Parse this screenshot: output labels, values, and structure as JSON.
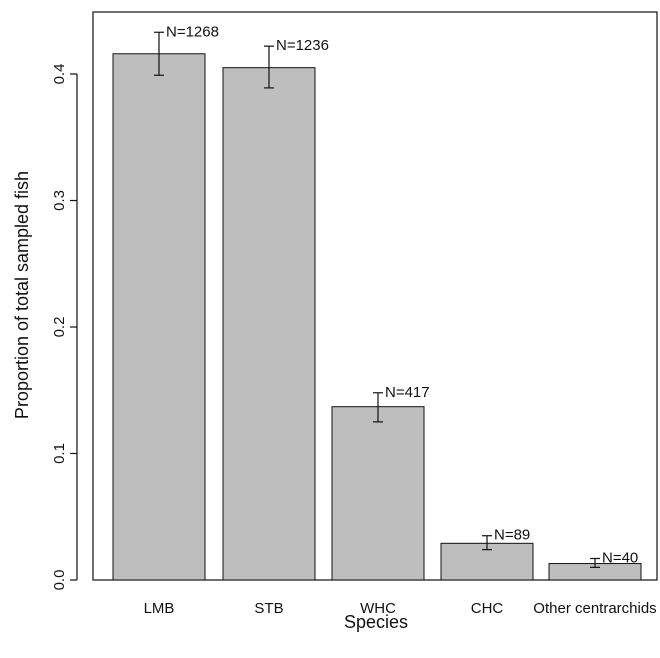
{
  "chart_data": {
    "type": "bar",
    "title": "",
    "xlabel": "Species",
    "ylabel": "Proportion of total sampled fish",
    "categories": [
      "LMB",
      "STB",
      "WHC",
      "CHC",
      "Other centrarchids"
    ],
    "values": [
      0.416,
      0.405,
      0.137,
      0.029,
      0.013
    ],
    "error_low": [
      0.399,
      0.389,
      0.125,
      0.024,
      0.01
    ],
    "error_high": [
      0.433,
      0.422,
      0.148,
      0.035,
      0.017
    ],
    "annotations": [
      "N=1268",
      "N=1236",
      "N=417",
      "N=89",
      "N=40"
    ],
    "ylim": [
      0,
      0.45
    ],
    "yticks": [
      0.0,
      0.1,
      0.2,
      0.3,
      0.4
    ],
    "ytick_labels": [
      "0.0",
      "0.1",
      "0.2",
      "0.3",
      "0.4"
    ],
    "grid": false,
    "colors": {
      "bar_fill": "#bebebe",
      "bar_stroke": "#111111",
      "axis": "#111111"
    }
  }
}
